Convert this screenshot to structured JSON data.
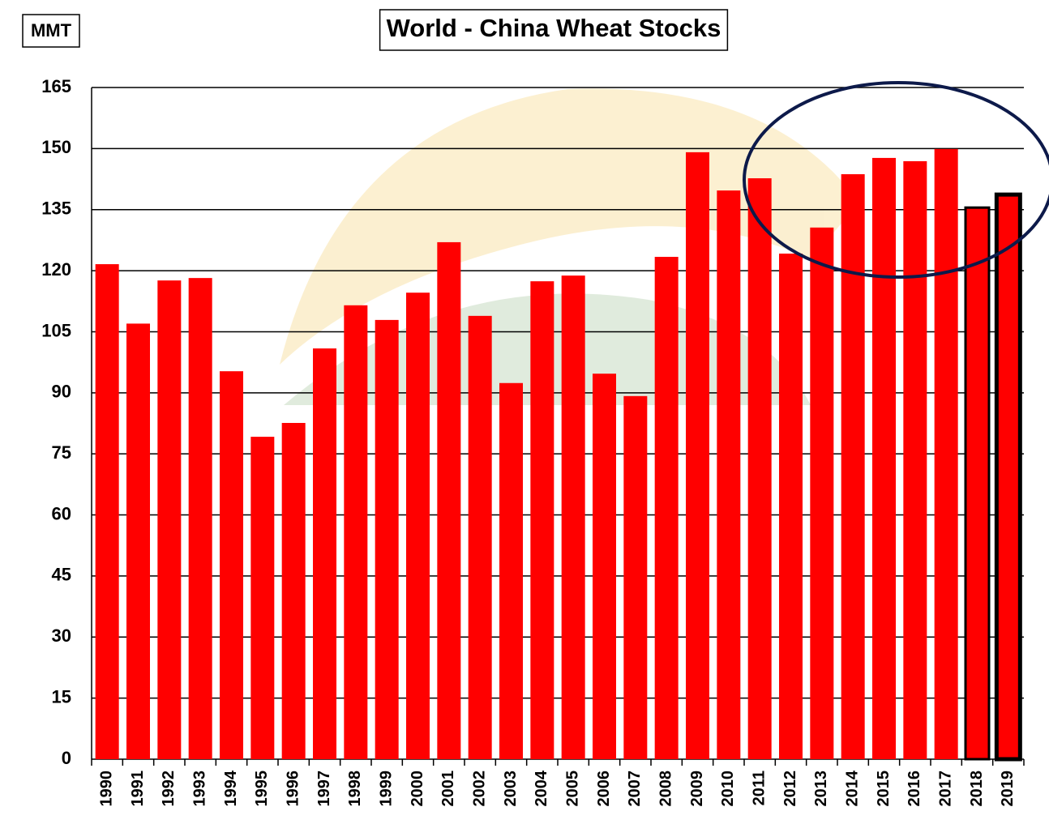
{
  "chart_data": {
    "type": "bar",
    "title": "World - China Wheat Stocks",
    "unit_label": "MMT",
    "categories": [
      "1990",
      "1991",
      "1992",
      "1993",
      "1994",
      "1995",
      "1996",
      "1997",
      "1998",
      "1999",
      "2000",
      "2001",
      "2002",
      "2003",
      "2004",
      "2005",
      "2006",
      "2007",
      "2008",
      "2009",
      "2010",
      "2011",
      "2012",
      "2013",
      "2014",
      "2015",
      "2016",
      "2017",
      "2018",
      "2019"
    ],
    "values": [
      121.6,
      107,
      117.6,
      118.2,
      95.3,
      79.2,
      82.6,
      100.9,
      111.5,
      107.9,
      114.6,
      127,
      108.9,
      92.4,
      117.4,
      118.8,
      94.7,
      89.2,
      123.4,
      149.1,
      139.7,
      142.7,
      124.2,
      130.6,
      143.7,
      147.7,
      146.9,
      149.9,
      135.5,
      138.7
    ],
    "color": "#ff0000",
    "edgecolors": [
      null,
      null,
      null,
      null,
      null,
      null,
      null,
      null,
      null,
      null,
      null,
      null,
      null,
      null,
      null,
      null,
      null,
      null,
      null,
      null,
      null,
      null,
      null,
      null,
      null,
      null,
      null,
      null,
      "#000000",
      "#000000"
    ],
    "ylim": [
      0,
      165
    ],
    "yticks": [
      0,
      15,
      30,
      45,
      60,
      75,
      90,
      105,
      120,
      135,
      150,
      165
    ],
    "grid": true
  }
}
